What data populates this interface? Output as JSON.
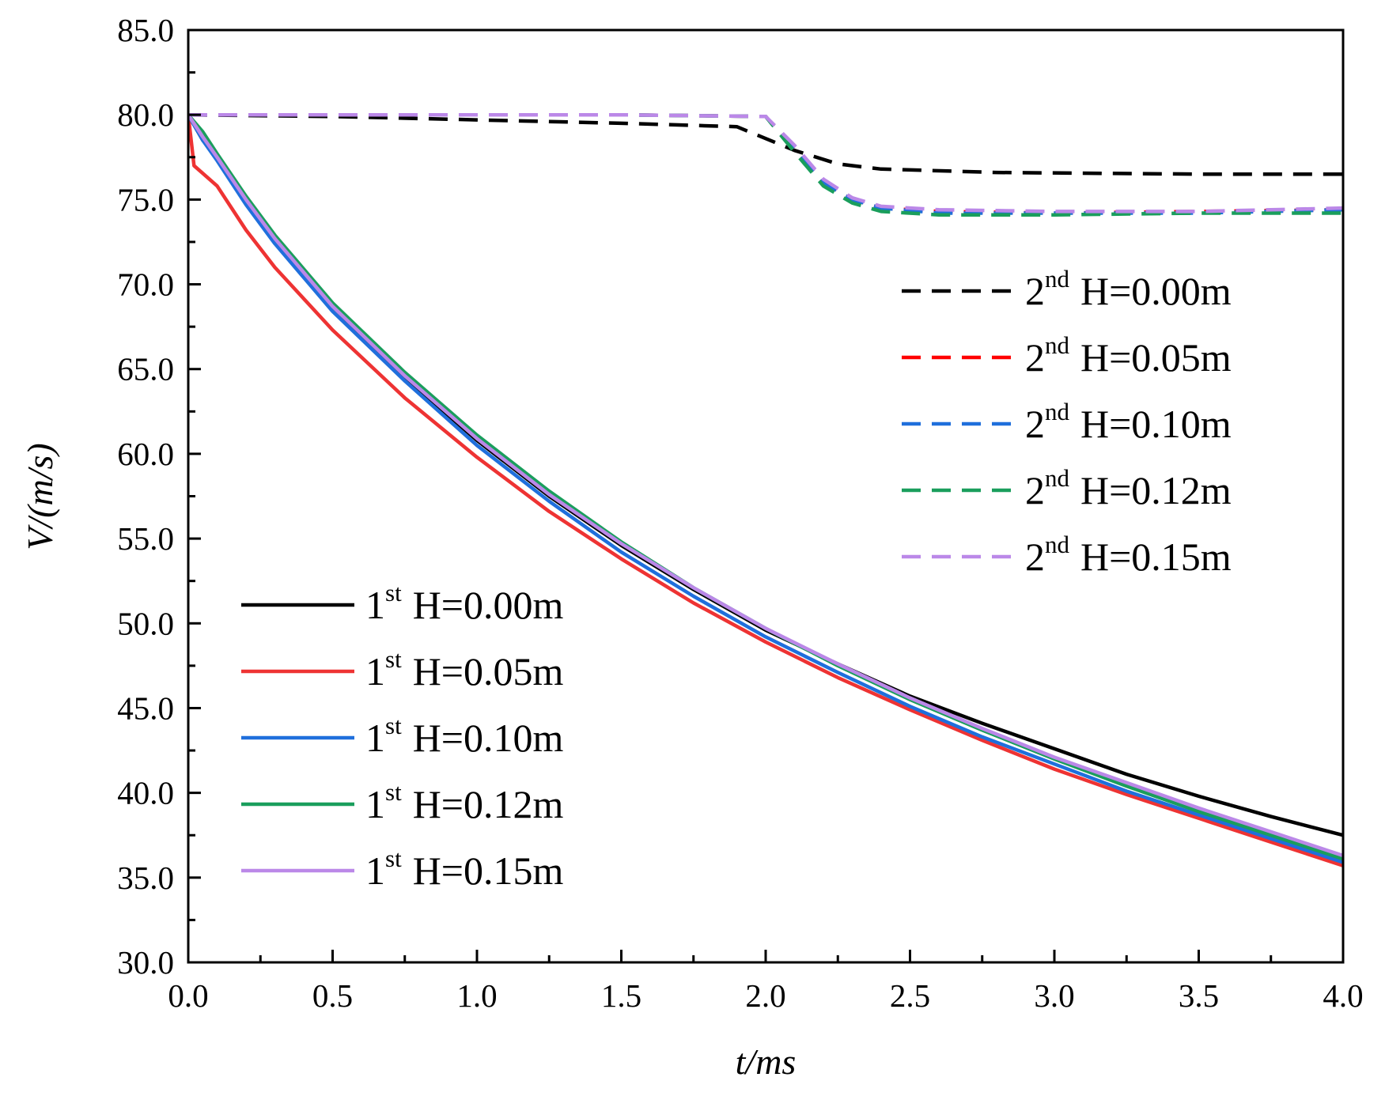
{
  "chart_data": {
    "type": "line",
    "title": "",
    "xlabel": "t/ms",
    "ylabel": "V/(m/s)",
    "xlim": [
      0.0,
      4.0
    ],
    "ylim": [
      30.0,
      85.0
    ],
    "x_ticks": [
      "0.0",
      "0.5",
      "1.0",
      "1.5",
      "2.0",
      "2.5",
      "3.0",
      "3.5",
      "4.0"
    ],
    "y_ticks": [
      "30.0",
      "35.0",
      "40.0",
      "45.0",
      "50.0",
      "55.0",
      "60.0",
      "65.0",
      "70.0",
      "75.0",
      "80.0",
      "85.0"
    ],
    "legends": [
      {
        "placement": "right-upper",
        "entries": [
          0,
          1,
          2,
          3,
          4
        ]
      },
      {
        "placement": "left-lower",
        "entries": [
          5,
          6,
          7,
          8,
          9
        ]
      }
    ],
    "series": [
      {
        "name": "H=0.00m",
        "order": "2",
        "suffix": "nd",
        "color": "#000000",
        "dash": true,
        "points": [
          [
            0,
            80.0
          ],
          [
            0.5,
            79.9
          ],
          [
            1.0,
            79.7
          ],
          [
            1.5,
            79.5
          ],
          [
            1.9,
            79.3
          ],
          [
            2.0,
            78.6
          ],
          [
            2.1,
            77.9
          ],
          [
            2.25,
            77.1
          ],
          [
            2.4,
            76.8
          ],
          [
            2.8,
            76.6
          ],
          [
            3.5,
            76.5
          ],
          [
            4.0,
            76.5
          ]
        ]
      },
      {
        "name": "H=0.05m",
        "order": "2",
        "suffix": "nd",
        "color": "#ff0000",
        "dash": true,
        "points": [
          [
            0,
            80.0
          ],
          [
            0.5,
            80.0
          ],
          [
            1.0,
            80.0
          ],
          [
            1.5,
            80.0
          ],
          [
            2.0,
            79.9
          ],
          [
            2.1,
            78.0
          ],
          [
            2.2,
            76.0
          ],
          [
            2.3,
            75.0
          ],
          [
            2.4,
            74.5
          ],
          [
            2.6,
            74.3
          ],
          [
            3.0,
            74.2
          ],
          [
            3.5,
            74.3
          ],
          [
            4.0,
            74.4
          ]
        ]
      },
      {
        "name": "H=0.10m",
        "order": "2",
        "suffix": "nd",
        "color": "#1f6fdc",
        "dash": true,
        "points": [
          [
            0,
            80.0
          ],
          [
            0.5,
            80.0
          ],
          [
            1.0,
            80.0
          ],
          [
            1.5,
            80.0
          ],
          [
            2.0,
            79.9
          ],
          [
            2.1,
            78.0
          ],
          [
            2.2,
            76.0
          ],
          [
            2.3,
            75.0
          ],
          [
            2.4,
            74.5
          ],
          [
            2.6,
            74.2
          ],
          [
            3.0,
            74.2
          ],
          [
            3.5,
            74.2
          ],
          [
            4.0,
            74.4
          ]
        ]
      },
      {
        "name": "H=0.12m",
        "order": "2",
        "suffix": "nd",
        "color": "#1a9e5c",
        "dash": true,
        "points": [
          [
            0,
            80.0
          ],
          [
            0.5,
            80.0
          ],
          [
            1.0,
            80.0
          ],
          [
            1.5,
            80.0
          ],
          [
            2.0,
            79.9
          ],
          [
            2.1,
            77.8
          ],
          [
            2.2,
            75.8
          ],
          [
            2.3,
            74.8
          ],
          [
            2.4,
            74.3
          ],
          [
            2.6,
            74.1
          ],
          [
            3.0,
            74.1
          ],
          [
            3.5,
            74.2
          ],
          [
            4.0,
            74.2
          ]
        ]
      },
      {
        "name": "H=0.15m",
        "order": "2",
        "suffix": "nd",
        "color": "#bb88e8",
        "dash": true,
        "points": [
          [
            0,
            80.0
          ],
          [
            0.5,
            80.0
          ],
          [
            1.0,
            80.0
          ],
          [
            1.5,
            80.0
          ],
          [
            2.0,
            79.9
          ],
          [
            2.1,
            78.2
          ],
          [
            2.2,
            76.2
          ],
          [
            2.3,
            75.1
          ],
          [
            2.4,
            74.6
          ],
          [
            2.6,
            74.4
          ],
          [
            3.0,
            74.3
          ],
          [
            3.5,
            74.3
          ],
          [
            4.0,
            74.5
          ]
        ]
      },
      {
        "name": "H=0.00m",
        "order": "1",
        "suffix": "st",
        "color": "#000000",
        "dash": false,
        "points": [
          [
            0,
            80.0
          ],
          [
            0.05,
            78.5
          ],
          [
            0.1,
            77.5
          ],
          [
            0.2,
            75.0
          ],
          [
            0.3,
            72.7
          ],
          [
            0.5,
            68.7
          ],
          [
            0.75,
            64.5
          ],
          [
            1.0,
            60.8
          ],
          [
            1.25,
            57.5
          ],
          [
            1.5,
            54.6
          ],
          [
            1.75,
            52.0
          ],
          [
            2.0,
            49.6
          ],
          [
            2.25,
            47.6
          ],
          [
            2.5,
            45.7
          ],
          [
            2.75,
            44.1
          ],
          [
            3.0,
            42.6
          ],
          [
            3.25,
            41.1
          ],
          [
            3.5,
            39.8
          ],
          [
            3.75,
            38.6
          ],
          [
            4.0,
            37.5
          ]
        ]
      },
      {
        "name": "H=0.05m",
        "order": "1",
        "suffix": "st",
        "color": "#ee3333",
        "dash": false,
        "points": [
          [
            0,
            80.0
          ],
          [
            0.02,
            77.0
          ],
          [
            0.1,
            75.8
          ],
          [
            0.2,
            73.2
          ],
          [
            0.3,
            71.0
          ],
          [
            0.5,
            67.3
          ],
          [
            0.75,
            63.3
          ],
          [
            1.0,
            59.8
          ],
          [
            1.25,
            56.6
          ],
          [
            1.5,
            53.8
          ],
          [
            1.75,
            51.2
          ],
          [
            2.0,
            48.9
          ],
          [
            2.25,
            46.8
          ],
          [
            2.5,
            44.9
          ],
          [
            2.75,
            43.1
          ],
          [
            3.0,
            41.4
          ],
          [
            3.25,
            39.9
          ],
          [
            3.5,
            38.5
          ],
          [
            3.75,
            37.1
          ],
          [
            4.0,
            35.7
          ]
        ]
      },
      {
        "name": "H=0.10m",
        "order": "1",
        "suffix": "st",
        "color": "#1f6fdc",
        "dash": false,
        "points": [
          [
            0,
            80.0
          ],
          [
            0.05,
            78.5
          ],
          [
            0.1,
            77.3
          ],
          [
            0.2,
            74.7
          ],
          [
            0.3,
            72.4
          ],
          [
            0.5,
            68.4
          ],
          [
            0.75,
            64.3
          ],
          [
            1.0,
            60.5
          ],
          [
            1.25,
            57.2
          ],
          [
            1.5,
            54.2
          ],
          [
            1.75,
            51.6
          ],
          [
            2.0,
            49.2
          ],
          [
            2.25,
            47.1
          ],
          [
            2.5,
            45.1
          ],
          [
            2.75,
            43.3
          ],
          [
            3.0,
            41.7
          ],
          [
            3.25,
            40.1
          ],
          [
            3.5,
            38.7
          ],
          [
            3.75,
            37.3
          ],
          [
            4.0,
            35.9
          ]
        ]
      },
      {
        "name": "H=0.12m",
        "order": "1",
        "suffix": "st",
        "color": "#1a9e5c",
        "dash": false,
        "points": [
          [
            0,
            80.0
          ],
          [
            0.05,
            79.0
          ],
          [
            0.1,
            77.7
          ],
          [
            0.2,
            75.2
          ],
          [
            0.3,
            72.9
          ],
          [
            0.5,
            68.9
          ],
          [
            0.75,
            64.8
          ],
          [
            1.0,
            61.1
          ],
          [
            1.25,
            57.8
          ],
          [
            1.5,
            54.8
          ],
          [
            1.75,
            52.1
          ],
          [
            2.0,
            49.7
          ],
          [
            2.25,
            47.5
          ],
          [
            2.5,
            45.5
          ],
          [
            2.75,
            43.7
          ],
          [
            3.0,
            42.0
          ],
          [
            3.25,
            40.4
          ],
          [
            3.5,
            38.9
          ],
          [
            3.75,
            37.5
          ],
          [
            4.0,
            36.1
          ]
        ]
      },
      {
        "name": "H=0.15m",
        "order": "1",
        "suffix": "st",
        "color": "#bb88e8",
        "dash": false,
        "points": [
          [
            0,
            80.0
          ],
          [
            0.05,
            78.7
          ],
          [
            0.1,
            77.5
          ],
          [
            0.2,
            75.0
          ],
          [
            0.3,
            72.7
          ],
          [
            0.5,
            68.7
          ],
          [
            0.75,
            64.6
          ],
          [
            1.0,
            60.9
          ],
          [
            1.25,
            57.6
          ],
          [
            1.5,
            54.7
          ],
          [
            1.75,
            52.1
          ],
          [
            2.0,
            49.7
          ],
          [
            2.25,
            47.6
          ],
          [
            2.5,
            45.6
          ],
          [
            2.75,
            43.8
          ],
          [
            3.0,
            42.1
          ],
          [
            3.25,
            40.6
          ],
          [
            3.5,
            39.1
          ],
          [
            3.75,
            37.7
          ],
          [
            4.0,
            36.3
          ]
        ]
      }
    ]
  }
}
